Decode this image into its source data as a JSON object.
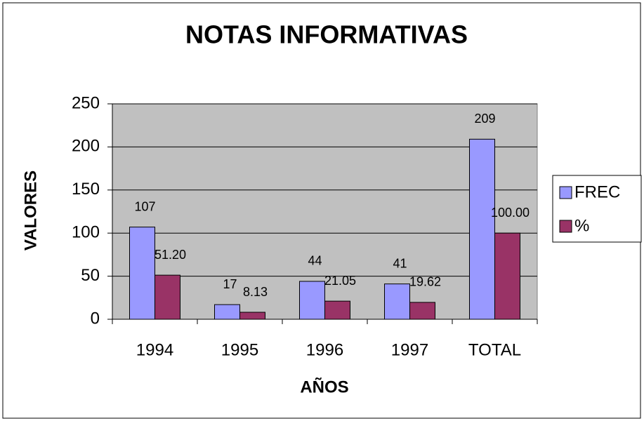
{
  "chart_data": {
    "type": "bar",
    "title": "NOTAS INFORMATIVAS",
    "xlabel": "AÑOS",
    "ylabel": "VALORES",
    "categories": [
      "1994",
      "1995",
      "1996",
      "1997",
      "TOTAL"
    ],
    "series": [
      {
        "name": "FREC",
        "color": "#9999ff",
        "values": [
          107,
          17,
          44,
          41,
          209
        ]
      },
      {
        "name": "%",
        "color": "#993366",
        "values": [
          51.2,
          8.13,
          21.05,
          19.62,
          100
        ],
        "value_labels": [
          "51.20",
          "8.13",
          "21.05",
          "19.62",
          "100.00"
        ]
      }
    ],
    "ylim": [
      0,
      250
    ],
    "yticks": [
      0,
      50,
      100,
      150,
      200,
      250
    ],
    "grid": true,
    "legend": "right"
  }
}
